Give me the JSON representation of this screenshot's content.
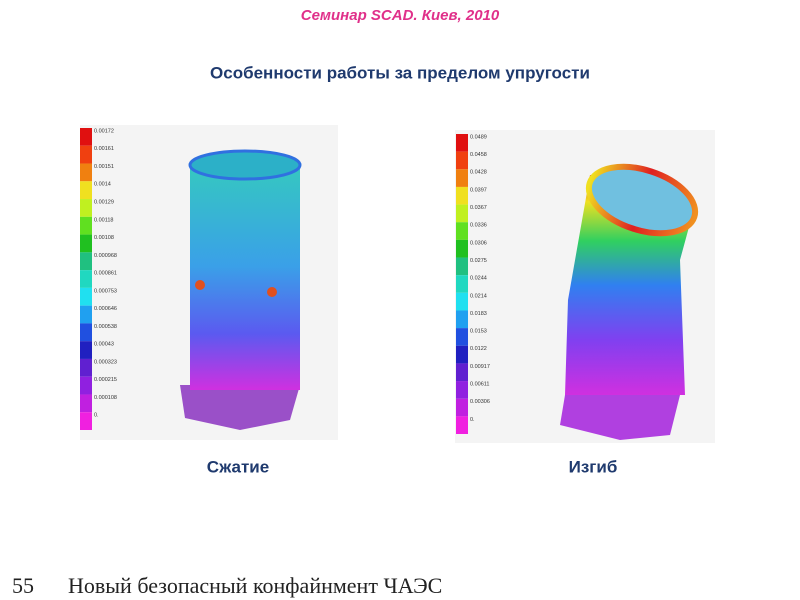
{
  "header": "Семинар SCAD. Киев, 2010",
  "title": "Особенности работы за пределом упругости",
  "figures": [
    {
      "caption": "Сжатие",
      "legend": [
        "0.00172",
        "0.00161",
        "0.00151",
        "0.0014",
        "0.00129",
        "0.00118",
        "0.00108",
        "0.000968",
        "0.000861",
        "0.000753",
        "0.000646",
        "0.000538",
        "0.00043",
        "0.000323",
        "0.000215",
        "0.000108",
        "0."
      ]
    },
    {
      "caption": "Изгиб",
      "legend": [
        "0.0489",
        "0.0458",
        "0.0428",
        "0.0397",
        "0.0367",
        "0.0336",
        "0.0306",
        "0.0275",
        "0.0244",
        "0.0214",
        "0.0183",
        "0.0153",
        "0.0122",
        "0.00917",
        "0.00611",
        "0.00306",
        "0."
      ]
    }
  ],
  "footer": {
    "page": "55",
    "text": "Новый безопасный конфайнмент ЧАЭС"
  }
}
